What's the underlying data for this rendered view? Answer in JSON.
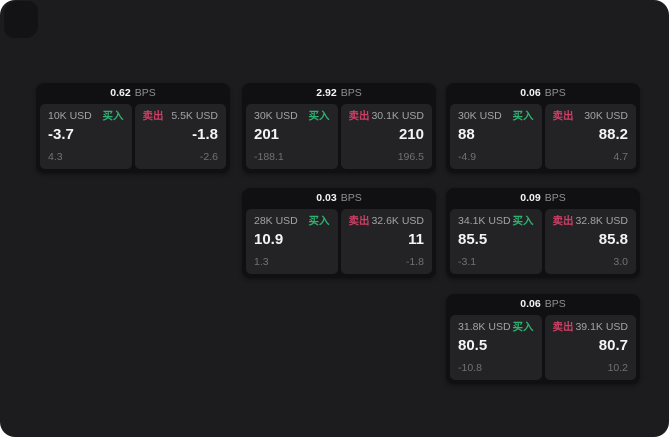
{
  "labels": {
    "bps": "BPS",
    "buy": "买入",
    "sell": "卖出"
  },
  "colors": {
    "window-bg": "#1c1c1e",
    "corner-tile-bg": "#131315",
    "card-bg": "#101012",
    "panel-bg": "#232326",
    "text-primary": "#f4f4f5",
    "text-secondary": "#a2a3a7",
    "text-bps": "#8e8f93",
    "text-dim": "#707175",
    "buy-green": "#2fb171",
    "sell-red": "#cd3f65"
  },
  "cards": [
    {
      "row": 0,
      "col": 0,
      "bps": "0.62",
      "buy": {
        "size": "10K USD",
        "price": "-3.7",
        "delta": "4.3"
      },
      "sell": {
        "size": "5.5K USD",
        "price": "-1.8",
        "delta": "-2.6"
      }
    },
    {
      "row": 0,
      "col": 1,
      "bps": "2.92",
      "buy": {
        "size": "30K USD",
        "price": "201",
        "delta": "-188.1"
      },
      "sell": {
        "size": "30.1K USD",
        "price": "210",
        "delta": "196.5"
      }
    },
    {
      "row": 0,
      "col": 2,
      "bps": "0.06",
      "buy": {
        "size": "30K USD",
        "price": "88",
        "delta": "-4.9"
      },
      "sell": {
        "size": "30K USD",
        "price": "88.2",
        "delta": "4.7"
      }
    },
    {
      "row": 1,
      "col": 1,
      "bps": "0.03",
      "buy": {
        "size": "28K USD",
        "price": "10.9",
        "delta": "1.3"
      },
      "sell": {
        "size": "32.6K USD",
        "price": "11",
        "delta": "-1.8"
      }
    },
    {
      "row": 1,
      "col": 2,
      "bps": "0.09",
      "buy": {
        "size": "34.1K USD",
        "price": "85.5",
        "delta": "-3.1"
      },
      "sell": {
        "size": "32.8K USD",
        "price": "85.8",
        "delta": "3.0"
      }
    },
    {
      "row": 2,
      "col": 2,
      "bps": "0.06",
      "buy": {
        "size": "31.8K USD",
        "price": "80.5",
        "delta": "-10.8"
      },
      "sell": {
        "size": "39.1K USD",
        "price": "80.7",
        "delta": "10.2"
      }
    }
  ]
}
